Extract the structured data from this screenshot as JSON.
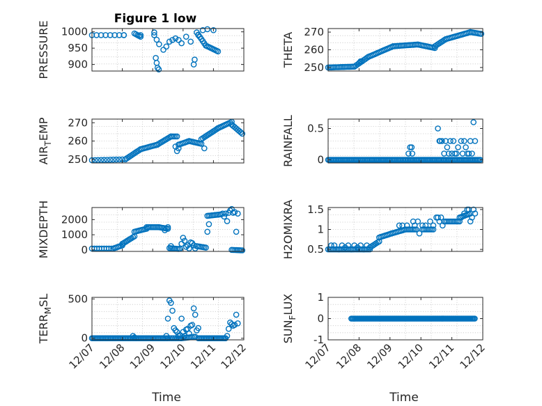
{
  "chart_data": [
    {
      "type": "scatter",
      "title": "Figure 1 low",
      "ylabel": "PRESSURE",
      "ylabel_parts": {
        "base": "PRESSURE"
      },
      "ylim": [
        880,
        1010
      ],
      "yticks": [
        1000,
        950,
        900
      ],
      "ytick_labels": [
        "1000",
        "950",
        "900"
      ],
      "xlim": [
        0,
        5
      ],
      "xtick_labels": [],
      "xlabel": "",
      "segments": [
        [
          0,
          0.15,
          1.05,
          990,
          990
        ],
        [
          1.05,
          0.4,
          1.4,
          990,
          995
        ],
        [
          1.4,
          0.05,
          1.6,
          995,
          985
        ],
        [
          1.6,
          0.45,
          2.05,
          990,
          998
        ],
        [
          2.05,
          0.08,
          2.25,
          990,
          955
        ],
        [
          3.45,
          0.05,
          3.75,
          998,
          958
        ],
        [
          3.75,
          0.05,
          4.15,
          958,
          940
        ]
      ],
      "points": [
        [
          2.1,
          920
        ],
        [
          2.13,
          905
        ],
        [
          2.16,
          890
        ],
        [
          2.2,
          885
        ],
        [
          2.35,
          945
        ],
        [
          2.45,
          955
        ],
        [
          2.55,
          970
        ],
        [
          2.65,
          975
        ],
        [
          2.75,
          980
        ],
        [
          2.85,
          975
        ],
        [
          2.95,
          965
        ],
        [
          3.1,
          985
        ],
        [
          3.25,
          970
        ],
        [
          3.35,
          900
        ],
        [
          3.38,
          915
        ],
        [
          3.5,
          990
        ],
        [
          3.65,
          1005
        ],
        [
          3.8,
          1008
        ],
        [
          4.0,
          1005
        ]
      ],
      "series_name": "PRESSURE"
    },
    {
      "type": "scatter",
      "title": "",
      "ylabel": "THETA",
      "ylabel_parts": {
        "base": "THETA"
      },
      "ylim": [
        248,
        272
      ],
      "yticks": [
        270,
        260,
        250
      ],
      "ytick_labels": [
        "270",
        "260",
        "250"
      ],
      "xlim": [
        0,
        5
      ],
      "xtick_labels": [],
      "xlabel": "",
      "segments": [
        [
          0,
          0.05,
          0.85,
          250,
          250.5
        ],
        [
          0.85,
          0.05,
          1.3,
          250.5,
          256
        ],
        [
          1.3,
          0.05,
          2.1,
          256,
          262
        ],
        [
          2.1,
          0.05,
          2.9,
          262,
          263
        ],
        [
          2.9,
          0.05,
          3.45,
          263,
          261
        ],
        [
          3.45,
          0.05,
          3.8,
          262,
          266
        ],
        [
          3.8,
          0.05,
          4.6,
          266,
          270
        ],
        [
          4.6,
          0.05,
          4.95,
          270,
          269
        ]
      ],
      "points": [
        [
          1.0,
          252.5
        ],
        [
          1.05,
          253.5
        ]
      ],
      "series_name": "THETA"
    },
    {
      "type": "scatter",
      "title": "",
      "ylabel": "AIR_TEMP",
      "ylabel_parts": {
        "base": "AIR",
        "sub": "T",
        "rest": "EMP"
      },
      "ylim": [
        248,
        272
      ],
      "yticks": [
        270,
        260,
        250
      ],
      "ytick_labels": [
        "270",
        "260",
        "250"
      ],
      "xlim": [
        0,
        5
      ],
      "xtick_labels": [],
      "xlabel": "",
      "segments": [
        [
          0,
          0.1,
          1.1,
          249.5,
          250
        ],
        [
          1.1,
          0.05,
          1.6,
          250,
          255.5
        ],
        [
          1.6,
          0.05,
          2.15,
          255.5,
          258
        ],
        [
          2.15,
          0.05,
          2.6,
          258,
          262.5
        ],
        [
          2.6,
          0.05,
          2.8,
          262.5,
          262.5
        ],
        [
          2.85,
          0.05,
          3.2,
          258,
          260
        ],
        [
          3.2,
          0.05,
          3.6,
          260,
          258.5
        ],
        [
          3.6,
          0.05,
          4.15,
          261,
          267
        ],
        [
          4.15,
          0.05,
          4.6,
          267,
          270.5
        ],
        [
          4.6,
          0.05,
          4.95,
          269,
          264
        ]
      ],
      "points": [
        [
          2.75,
          257
        ],
        [
          2.8,
          254.5
        ],
        [
          2.85,
          256
        ],
        [
          3.7,
          256
        ]
      ],
      "series_name": "AIR_TEMP"
    },
    {
      "type": "scatter",
      "title": "",
      "ylabel": "RAINFALL",
      "ylabel_parts": {
        "base": "RAINFALL"
      },
      "ylim": [
        -0.05,
        0.65
      ],
      "yticks": [
        0.5,
        0
      ],
      "ytick_labels": [
        "0.5",
        "0"
      ],
      "xlim": [
        0,
        5
      ],
      "xtick_labels": [],
      "xlabel": "",
      "segments": [
        [
          0,
          0.04,
          4.95,
          0,
          0
        ]
      ],
      "points": [
        [
          2.6,
          0.1
        ],
        [
          2.65,
          0.2
        ],
        [
          2.7,
          0.2
        ],
        [
          2.72,
          0.1
        ],
        [
          3.55,
          0.5
        ],
        [
          3.6,
          0.3
        ],
        [
          3.62,
          0.3
        ],
        [
          3.68,
          0.3
        ],
        [
          3.75,
          0.1
        ],
        [
          3.8,
          0.3
        ],
        [
          3.85,
          0.2
        ],
        [
          3.9,
          0.1
        ],
        [
          3.95,
          0.3
        ],
        [
          4.0,
          0.1
        ],
        [
          4.05,
          0.3
        ],
        [
          4.1,
          0.1
        ],
        [
          4.15,
          0.1
        ],
        [
          4.2,
          0.2
        ],
        [
          4.3,
          0.3
        ],
        [
          4.35,
          0.1
        ],
        [
          4.4,
          0.3
        ],
        [
          4.45,
          0.2
        ],
        [
          4.5,
          0.1
        ],
        [
          4.55,
          0.1
        ],
        [
          4.6,
          0.3
        ],
        [
          4.65,
          0.1
        ],
        [
          4.7,
          0.6
        ],
        [
          4.75,
          0.3
        ]
      ],
      "series_name": "RAINFALL"
    },
    {
      "type": "scatter",
      "title": "",
      "ylabel": "MIXDEPTH",
      "ylabel_parts": {
        "base": "MIXDEPTH"
      },
      "ylim": [
        -100,
        2800
      ],
      "yticks": [
        2000,
        1000,
        0
      ],
      "ytick_labels": [
        "2000",
        "1000",
        "0"
      ],
      "xlim": [
        0,
        5
      ],
      "xtick_labels": [],
      "xlabel": "",
      "segments": [
        [
          0,
          0.08,
          0.7,
          90,
          90
        ],
        [
          0.7,
          0.05,
          1.0,
          90,
          300
        ],
        [
          1.0,
          0.05,
          1.4,
          400,
          900
        ],
        [
          1.4,
          0.05,
          1.8,
          1200,
          1400
        ],
        [
          1.8,
          0.05,
          2.2,
          1500,
          1500
        ],
        [
          2.2,
          0.05,
          2.5,
          1500,
          1400
        ],
        [
          2.55,
          0.05,
          2.85,
          120,
          60
        ],
        [
          3.45,
          0.05,
          3.75,
          250,
          150
        ],
        [
          3.8,
          0.05,
          4.25,
          2250,
          2350
        ],
        [
          4.6,
          0.05,
          4.95,
          0,
          -30
        ]
      ],
      "points": [
        [
          2.4,
          1300
        ],
        [
          2.5,
          1500
        ],
        [
          2.6,
          250
        ],
        [
          2.9,
          80
        ],
        [
          2.95,
          400
        ],
        [
          3.0,
          800
        ],
        [
          3.05,
          600
        ],
        [
          3.1,
          200
        ],
        [
          3.15,
          300
        ],
        [
          3.2,
          100
        ],
        [
          3.25,
          500
        ],
        [
          3.3,
          450
        ],
        [
          3.35,
          300
        ],
        [
          3.4,
          100
        ],
        [
          3.8,
          1200
        ],
        [
          3.85,
          1700
        ],
        [
          4.3,
          2400
        ],
        [
          4.35,
          2200
        ],
        [
          4.4,
          2400
        ],
        [
          4.45,
          1900
        ],
        [
          4.5,
          2450
        ],
        [
          4.55,
          2600
        ],
        [
          4.6,
          2700
        ],
        [
          4.65,
          2450
        ],
        [
          4.7,
          2500
        ],
        [
          4.75,
          1200
        ],
        [
          4.8,
          2400
        ]
      ],
      "series_name": "MIXDEPTH"
    },
    {
      "type": "scatter",
      "title": "",
      "ylabel": "H2OMIXRA",
      "ylabel_parts": {
        "base": "H2OMIXRA"
      },
      "ylim": [
        0.45,
        1.55
      ],
      "yticks": [
        1.5,
        1,
        0.5
      ],
      "ytick_labels": [
        "1.5",
        "1",
        "0.5"
      ],
      "xlim": [
        0,
        5
      ],
      "xtick_labels": [],
      "xlabel": "",
      "segments": [
        [
          0,
          0.05,
          1.35,
          0.5,
          0.5
        ],
        [
          1.35,
          0.05,
          1.65,
          0.55,
          0.7
        ],
        [
          1.65,
          0.05,
          2.05,
          0.8,
          0.9
        ],
        [
          2.05,
          0.05,
          2.5,
          0.9,
          1.0
        ],
        [
          2.5,
          0.05,
          2.85,
          1.0,
          1.0
        ],
        [
          3.05,
          0.05,
          3.4,
          1.0,
          1.0
        ],
        [
          3.75,
          0.05,
          4.25,
          1.2,
          1.2
        ],
        [
          4.25,
          0.05,
          4.6,
          1.3,
          1.4
        ]
      ],
      "points": [
        [
          0.1,
          0.6
        ],
        [
          0.2,
          0.6
        ],
        [
          0.35,
          0.5
        ],
        [
          0.45,
          0.6
        ],
        [
          0.55,
          0.55
        ],
        [
          0.65,
          0.6
        ],
        [
          0.75,
          0.5
        ],
        [
          0.85,
          0.6
        ],
        [
          0.95,
          0.55
        ],
        [
          1.05,
          0.6
        ],
        [
          1.15,
          0.5
        ],
        [
          1.25,
          0.6
        ],
        [
          2.3,
          1.1
        ],
        [
          2.4,
          1.1
        ],
        [
          2.55,
          1.1
        ],
        [
          2.75,
          1.2
        ],
        [
          2.8,
          1.1
        ],
        [
          2.9,
          1.2
        ],
        [
          2.95,
          0.9
        ],
        [
          3.05,
          1.1
        ],
        [
          3.15,
          1.1
        ],
        [
          3.3,
          1.2
        ],
        [
          3.4,
          1.1
        ],
        [
          3.5,
          1.3
        ],
        [
          3.55,
          1.3
        ],
        [
          3.6,
          1.2
        ],
        [
          3.65,
          1.3
        ],
        [
          3.7,
          1.1
        ],
        [
          4.3,
          1.3
        ],
        [
          4.4,
          1.4
        ],
        [
          4.5,
          1.5
        ],
        [
          4.55,
          1.5
        ],
        [
          4.6,
          1.2
        ],
        [
          4.65,
          1.3
        ],
        [
          4.7,
          1.5
        ],
        [
          4.75,
          1.4
        ]
      ],
      "series_name": "H2OMIXRA"
    },
    {
      "type": "scatter",
      "title": "",
      "ylabel": "TERR_MSL",
      "ylabel_parts": {
        "base": "TERR",
        "sub": "M",
        "rest": "SL"
      },
      "ylim": [
        -20,
        520
      ],
      "yticks": [
        500,
        0
      ],
      "ytick_labels": [
        "500",
        "0"
      ],
      "xlim": [
        0,
        5
      ],
      "xtick_labels": [
        "12/07",
        "12/08",
        "12/09",
        "12/10",
        "12/11",
        "12/12"
      ],
      "xlabel": "Time",
      "segments": [
        [
          0,
          0.04,
          2.5,
          0,
          0
        ],
        [
          2.5,
          0.06,
          2.95,
          0,
          0
        ],
        [
          2.95,
          0.05,
          3.4,
          0,
          20
        ],
        [
          3.5,
          0.04,
          4.4,
          0,
          0
        ]
      ],
      "points": [
        [
          1.35,
          30
        ],
        [
          1.4,
          10
        ],
        [
          1.45,
          0
        ],
        [
          2.45,
          30
        ],
        [
          2.5,
          250
        ],
        [
          2.55,
          480
        ],
        [
          2.6,
          450
        ],
        [
          2.65,
          350
        ],
        [
          2.7,
          130
        ],
        [
          2.75,
          100
        ],
        [
          2.8,
          80
        ],
        [
          2.85,
          30
        ],
        [
          2.9,
          40
        ],
        [
          2.95,
          250
        ],
        [
          3.0,
          80
        ],
        [
          3.05,
          30
        ],
        [
          3.1,
          110
        ],
        [
          3.15,
          120
        ],
        [
          3.2,
          60
        ],
        [
          3.25,
          160
        ],
        [
          3.3,
          170
        ],
        [
          3.35,
          380
        ],
        [
          3.4,
          300
        ],
        [
          3.45,
          100
        ],
        [
          3.5,
          130
        ],
        [
          4.4,
          0
        ],
        [
          4.45,
          30
        ],
        [
          4.5,
          120
        ],
        [
          4.55,
          200
        ],
        [
          4.6,
          180
        ],
        [
          4.65,
          160
        ],
        [
          4.7,
          170
        ],
        [
          4.75,
          300
        ],
        [
          4.8,
          190
        ]
      ],
      "series_name": "TERR_MSL"
    },
    {
      "type": "scatter",
      "title": "",
      "ylabel": "SUN_FLUX",
      "ylabel_parts": {
        "base": "SUN",
        "sub": "F",
        "rest": "LUX"
      },
      "ylim": [
        -1,
        1
      ],
      "yticks": [
        1,
        0,
        -1
      ],
      "ytick_labels": [
        "1",
        "0",
        "-1"
      ],
      "xlim": [
        0,
        5
      ],
      "xtick_labels": [
        "12/07",
        "12/08",
        "12/09",
        "12/10",
        "12/11",
        "12/12"
      ],
      "xlabel": "Time",
      "segments": [
        [
          0.75,
          0.035,
          4.75,
          0,
          0
        ]
      ],
      "points": [],
      "series_name": "SUN_FLUX"
    }
  ]
}
